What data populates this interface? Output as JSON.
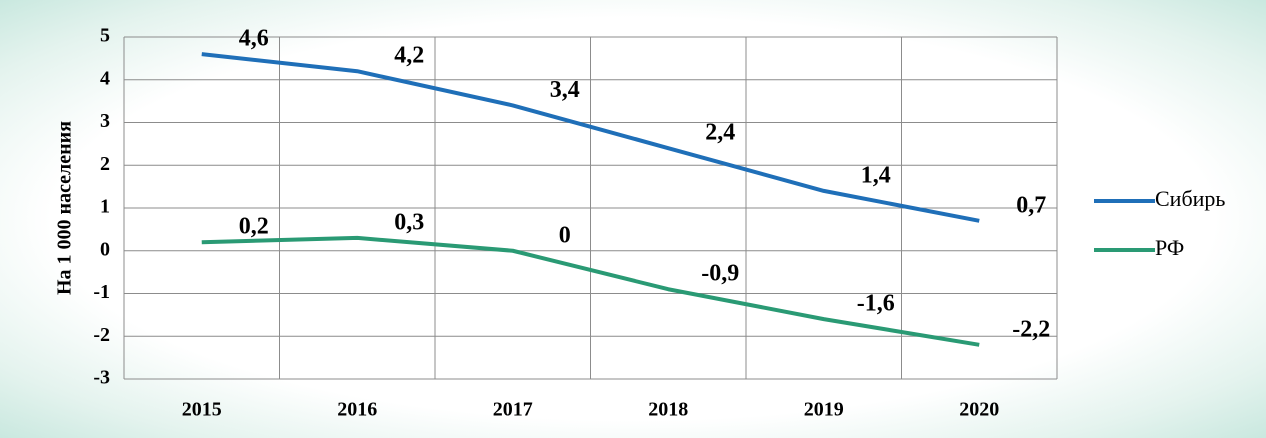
{
  "chart_data": {
    "type": "line",
    "y_label": "На 1 000 населения",
    "categories": [
      "2015",
      "2016",
      "2017",
      "2018",
      "2019",
      "2020"
    ],
    "series": [
      {
        "name": "Сибирь",
        "color": "#1f6fb8",
        "values": [
          4.6,
          4.2,
          3.4,
          2.4,
          1.4,
          0.7
        ],
        "value_labels": [
          "4,6",
          "4,2",
          "3,4",
          "2,4",
          "1,4",
          "0,7"
        ]
      },
      {
        "name": "РФ",
        "color": "#2a9a74",
        "values": [
          0.2,
          0.3,
          0,
          -0.9,
          -1.6,
          -2.2
        ],
        "value_labels": [
          "0,2",
          "0,3",
          "0",
          "-0,9",
          "-1,6",
          "-2,2"
        ]
      }
    ],
    "ylim": [
      -3,
      5
    ],
    "yticks": [
      -3,
      -2,
      -1,
      0,
      1,
      2,
      3,
      4,
      5
    ],
    "grid": true,
    "legend": "right"
  }
}
